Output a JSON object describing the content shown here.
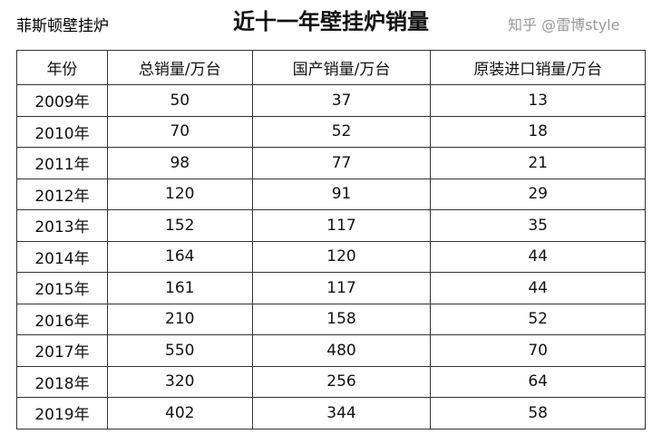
{
  "title": "近十一年壁挂炉销量",
  "headers": [
    "年份",
    "总销量/万台",
    "国产销量/万台",
    "原装进口销量/万台"
  ],
  "rows": [
    [
      "2009年",
      "50",
      "37",
      "13"
    ],
    [
      "2010年",
      "70",
      "52",
      "18"
    ],
    [
      "2011年",
      "98",
      "77",
      "21"
    ],
    [
      "2012年",
      "120",
      "91",
      "29"
    ],
    [
      "2013年",
      "152",
      "117",
      "35"
    ],
    [
      "2014年",
      "164",
      "120",
      "44"
    ],
    [
      "2015年",
      "161",
      "117",
      "44"
    ],
    [
      "2016年",
      "210",
      "158",
      "52"
    ],
    [
      "2017年",
      "550",
      "480",
      "70"
    ],
    [
      "2018年",
      "320",
      "256",
      "64"
    ],
    [
      "2019年",
      "402",
      "344",
      "58"
    ]
  ],
  "watermark": "知乎 @雷博style",
  "overlay_text": "菲斯顿壁挂炉"
}
